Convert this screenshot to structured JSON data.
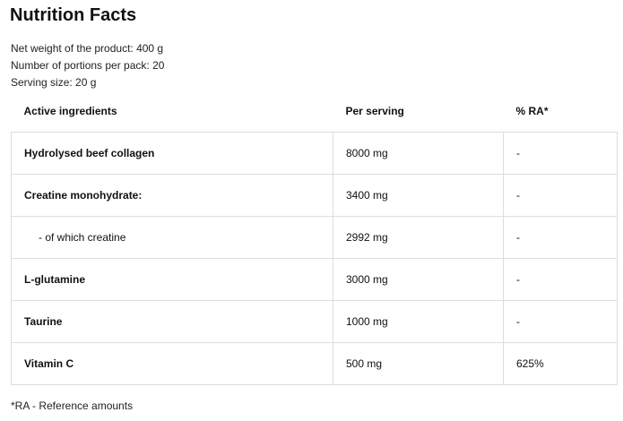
{
  "title": "Nutrition Facts",
  "meta": [
    "Net weight of the product: 400 g",
    "Number of portions per pack: 20",
    "Serving size: 20 g"
  ],
  "table": {
    "headers": [
      "Active ingredients",
      "Per serving",
      "% RA*"
    ],
    "rows": [
      {
        "name": "Hydrolysed beef collagen",
        "per_serving": "8000 mg",
        "ra": "-",
        "sub": false
      },
      {
        "name": "Creatine monohydrate:",
        "per_serving": "3400 mg",
        "ra": "-",
        "sub": false
      },
      {
        "name": "- of which creatine",
        "per_serving": "2992 mg",
        "ra": "-",
        "sub": true
      },
      {
        "name": "L-glutamine",
        "per_serving": "3000 mg",
        "ra": "-",
        "sub": false
      },
      {
        "name": "Taurine",
        "per_serving": "1000 mg",
        "ra": "-",
        "sub": false
      },
      {
        "name": "Vitamin C",
        "per_serving": "500 mg",
        "ra": "625%",
        "sub": false
      }
    ]
  },
  "footnote": "*RA - Reference amounts"
}
